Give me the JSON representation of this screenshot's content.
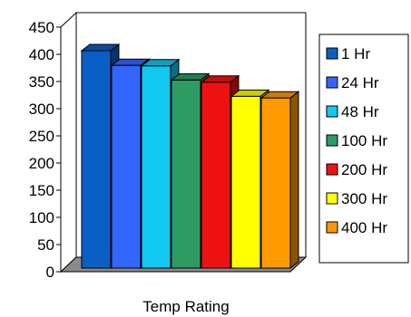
{
  "chart_data": {
    "type": "bar",
    "categories": [
      "Temp Rating"
    ],
    "xlabel": "Temp Rating",
    "ylabel": "",
    "ylim": [
      0,
      450
    ],
    "yticks": [
      0,
      50,
      100,
      150,
      200,
      250,
      300,
      350,
      400,
      450
    ],
    "grid": false,
    "legend_position": "right",
    "series": [
      {
        "name": "1 Hr",
        "values": [
          400
        ],
        "color": "#0a5fc6"
      },
      {
        "name": "24 Hr",
        "values": [
          373
        ],
        "color": "#3366ff"
      },
      {
        "name": "48 Hr",
        "values": [
          372
        ],
        "color": "#11c8f0"
      },
      {
        "name": "100 Hr",
        "values": [
          346
        ],
        "color": "#2e9b63"
      },
      {
        "name": "200 Hr",
        "values": [
          342
        ],
        "color": "#ee1111"
      },
      {
        "name": "300 Hr",
        "values": [
          316
        ],
        "color": "#ffff00"
      },
      {
        "name": "400 Hr",
        "values": [
          313
        ],
        "color": "#ff9900"
      }
    ]
  }
}
